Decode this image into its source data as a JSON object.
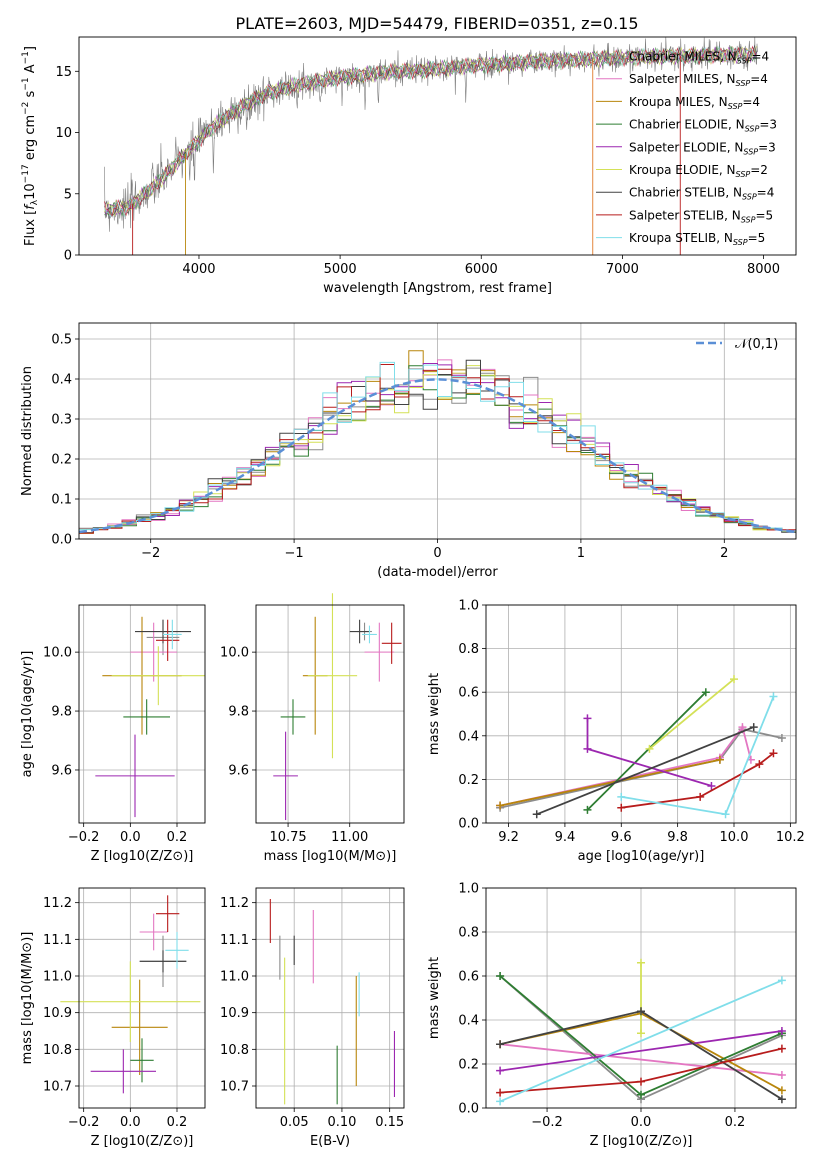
{
  "figure": {
    "title": "PLATE=2603, MJD=54479, FIBERID=0351, z=0.15"
  },
  "models": [
    {
      "name": "Chabrier MILES",
      "nssp": "4",
      "color": "#8c8c8c"
    },
    {
      "name": "Salpeter MILES",
      "nssp": "4",
      "color": "#e377c2"
    },
    {
      "name": "Kroupa MILES",
      "nssp": "4",
      "color": "#b8860b"
    },
    {
      "name": "Chabrier ELODIE",
      "nssp": "3",
      "color": "#2e7d32"
    },
    {
      "name": "Salpeter ELODIE",
      "nssp": "3",
      "color": "#9c27b0"
    },
    {
      "name": "Kroupa ELODIE",
      "nssp": "2",
      "color": "#d4e157"
    },
    {
      "name": "Chabrier STELIB",
      "nssp": "4",
      "color": "#424242"
    },
    {
      "name": "Salpeter STELIB",
      "nssp": "5",
      "color": "#b71c1c"
    },
    {
      "name": "Kroupa STELIB",
      "nssp": "5",
      "color": "#80deea"
    }
  ],
  "chart_data": [
    {
      "id": "spectrum",
      "type": "line",
      "xlabel": "wavelength [Angstrom, rest frame]",
      "ylabel": "Flux [f_λ 10^-17 erg cm^-2 s^-1 A^-1]",
      "xlim": [
        3150,
        8230
      ],
      "ylim": [
        0,
        17.8
      ],
      "xticks": [
        4000,
        5000,
        6000,
        7000,
        8000
      ],
      "yticks": [
        0,
        5,
        10,
        15
      ],
      "grid": false,
      "legend": "top-right",
      "continuum": {
        "x": [
          3330,
          3500,
          3700,
          3900,
          4100,
          4300,
          4500,
          4700,
          5000,
          5300,
          5600,
          6000,
          6400,
          6800,
          7200,
          7600,
          7960
        ],
        "y": [
          3.7,
          3.9,
          5.8,
          8.2,
          10.5,
          12.1,
          13.3,
          13.9,
          14.5,
          14.9,
          15.1,
          15.5,
          15.8,
          16.0,
          16.2,
          16.3,
          16.4
        ]
      }
    },
    {
      "id": "residuals",
      "type": "line",
      "xlabel": "(data-model)/error",
      "ylabel": "Normed distribution",
      "xlim": [
        -2.5,
        2.5
      ],
      "ylim": [
        0,
        0.54
      ],
      "xticks": [
        -2,
        -1,
        0,
        1,
        2
      ],
      "yticks": [
        0.0,
        0.1,
        0.2,
        0.3,
        0.4,
        0.5
      ],
      "grid": true,
      "legend": "top-right",
      "reference": {
        "name": "𝒩(0,1)",
        "mean": 0,
        "sigma": 1,
        "color": "#5b8fd6"
      },
      "bin_width": 0.1
    },
    {
      "id": "age_vs_Z",
      "type": "scatter",
      "xlabel": "Z [log10(Z/Z⊙)]",
      "ylabel": "age [log10(age/yr)]",
      "xlim": [
        -0.22,
        0.32
      ],
      "ylim": [
        9.42,
        10.16
      ],
      "xticks": [
        -0.2,
        0.0,
        0.2
      ],
      "yticks": [
        9.6,
        9.8,
        10.0
      ],
      "grid": true,
      "points": [
        {
          "model": 0,
          "x": 0.14,
          "y": 10.05,
          "xerr": 0.07,
          "yerr": 0.06
        },
        {
          "model": 1,
          "x": 0.1,
          "y": 10.0,
          "xerr": 0.1,
          "yerr": 0.1
        },
        {
          "model": 2,
          "x": 0.05,
          "y": 9.92,
          "xerr": 0.17,
          "yerr": 0.2
        },
        {
          "model": 3,
          "x": 0.07,
          "y": 9.78,
          "xerr": 0.1,
          "yerr": 0.06
        },
        {
          "model": 4,
          "x": 0.02,
          "y": 9.58,
          "xerr": 0.17,
          "yerr": 0.14
        },
        {
          "model": 5,
          "x": 0.12,
          "y": 9.92,
          "xerr": 0.2,
          "yerr": 0.1
        },
        {
          "model": 6,
          "x": 0.14,
          "y": 10.07,
          "xerr": 0.12,
          "yerr": 0.04
        },
        {
          "model": 7,
          "x": 0.16,
          "y": 10.04,
          "xerr": 0.05,
          "yerr": 0.07
        },
        {
          "model": 8,
          "x": 0.18,
          "y": 10.06,
          "xerr": 0.04,
          "yerr": 0.05
        }
      ]
    },
    {
      "id": "age_vs_mass",
      "type": "scatter",
      "xlabel": "mass [log10(M/M⊙)]",
      "ylabel": "",
      "xlim": [
        10.62,
        11.22
      ],
      "ylim": [
        9.42,
        10.16
      ],
      "xticks": [
        10.75,
        11.0
      ],
      "yticks": [
        9.6,
        9.8,
        10.0
      ],
      "grid": true,
      "points": [
        {
          "model": 0,
          "x": 11.06,
          "y": 10.07,
          "xerr": 0.03,
          "yerr": 0.03
        },
        {
          "model": 1,
          "x": 11.12,
          "y": 10.0,
          "xerr": 0.06,
          "yerr": 0.1
        },
        {
          "model": 2,
          "x": 10.86,
          "y": 9.92,
          "xerr": 0.05,
          "yerr": 0.2
        },
        {
          "model": 3,
          "x": 10.77,
          "y": 9.78,
          "xerr": 0.05,
          "yerr": 0.06
        },
        {
          "model": 4,
          "x": 10.74,
          "y": 9.58,
          "xerr": 0.05,
          "yerr": 0.15
        },
        {
          "model": 5,
          "x": 10.93,
          "y": 9.92,
          "xerr": 0.1,
          "yerr": 0.28
        },
        {
          "model": 6,
          "x": 11.04,
          "y": 10.07,
          "xerr": 0.04,
          "yerr": 0.04
        },
        {
          "model": 7,
          "x": 11.17,
          "y": 10.03,
          "xerr": 0.04,
          "yerr": 0.07
        },
        {
          "model": 8,
          "x": 11.08,
          "y": 10.06,
          "xerr": 0.03,
          "yerr": 0.03
        }
      ]
    },
    {
      "id": "weight_vs_age",
      "type": "line",
      "xlabel": "age [log10(age/yr)]",
      "ylabel": "mass weight",
      "xlim": [
        9.12,
        10.22
      ],
      "ylim": [
        0,
        1.0
      ],
      "xticks": [
        9.2,
        9.4,
        9.6,
        9.8,
        10.0,
        10.2
      ],
      "yticks": [
        0.0,
        0.2,
        0.4,
        0.6,
        0.8,
        1.0
      ],
      "grid": true,
      "series": [
        {
          "model": 0,
          "x": [
            9.17,
            9.95,
            10.03,
            10.17
          ],
          "y": [
            0.07,
            0.29,
            0.43,
            0.39
          ]
        },
        {
          "model": 1,
          "x": [
            9.17,
            9.95,
            10.03,
            10.06
          ],
          "y": [
            0.08,
            0.3,
            0.44,
            0.29
          ]
        },
        {
          "model": 2,
          "x": [
            9.17,
            9.95
          ],
          "y": [
            0.08,
            0.29
          ]
        },
        {
          "model": 3,
          "x": [
            9.48,
            9.9
          ],
          "y": [
            0.06,
            0.6
          ]
        },
        {
          "model": 4,
          "x": [
            9.48,
            9.48,
            9.92
          ],
          "y": [
            0.48,
            0.34,
            0.17
          ]
        },
        {
          "model": 5,
          "x": [
            9.7,
            10.0
          ],
          "y": [
            0.34,
            0.66
          ]
        },
        {
          "model": 6,
          "x": [
            9.3,
            10.07
          ],
          "y": [
            0.04,
            0.44
          ]
        },
        {
          "model": 7,
          "x": [
            9.6,
            9.88,
            10.09,
            10.14
          ],
          "y": [
            0.07,
            0.12,
            0.27,
            0.32
          ]
        },
        {
          "model": 8,
          "x": [
            9.6,
            9.97,
            10.14
          ],
          "y": [
            0.12,
            0.04,
            0.58
          ]
        }
      ]
    },
    {
      "id": "mass_vs_Z",
      "type": "scatter",
      "xlabel": "Z [log10(Z/Z⊙)]",
      "ylabel": "mass [log10(M/M⊙)]",
      "xlim": [
        -0.22,
        0.32
      ],
      "ylim": [
        10.64,
        11.24
      ],
      "xticks": [
        -0.2,
        0.0,
        0.2
      ],
      "yticks": [
        10.7,
        10.8,
        10.9,
        11.0,
        11.1,
        11.2
      ],
      "grid": true,
      "points": [
        {
          "model": 0,
          "x": 0.14,
          "y": 11.04,
          "xerr": 0.1,
          "yerr": 0.07
        },
        {
          "model": 1,
          "x": 0.1,
          "y": 11.12,
          "xerr": 0.06,
          "yerr": 0.05
        },
        {
          "model": 2,
          "x": 0.04,
          "y": 10.86,
          "xerr": 0.12,
          "yerr": 0.13
        },
        {
          "model": 3,
          "x": 0.05,
          "y": 10.77,
          "xerr": 0.05,
          "yerr": 0.06
        },
        {
          "model": 4,
          "x": -0.03,
          "y": 10.74,
          "xerr": 0.14,
          "yerr": 0.06
        },
        {
          "model": 5,
          "x": 0.0,
          "y": 10.93,
          "xerr": 0.3,
          "yerr": 0.11
        },
        {
          "model": 6,
          "x": 0.14,
          "y": 11.04,
          "xerr": 0.1,
          "yerr": 0.03
        },
        {
          "model": 7,
          "x": 0.16,
          "y": 11.17,
          "xerr": 0.05,
          "yerr": 0.05
        },
        {
          "model": 8,
          "x": 0.2,
          "y": 11.07,
          "xerr": 0.05,
          "yerr": 0.05
        }
      ]
    },
    {
      "id": "mass_vs_ebv",
      "type": "scatter",
      "xlabel": "E(B-V)",
      "ylabel": "",
      "xlim": [
        0.01,
        0.165
      ],
      "ylim": [
        10.64,
        11.24
      ],
      "xticks": [
        0.05,
        0.1,
        0.15
      ],
      "yticks": [
        10.7,
        10.8,
        10.9,
        11.0,
        11.1,
        11.2
      ],
      "grid": true,
      "points": [
        {
          "model": 0,
          "x": 0.035,
          "y": 11.05,
          "xerr": 0,
          "yerr": 0.06
        },
        {
          "model": 1,
          "x": 0.07,
          "y": 11.08,
          "xerr": 0,
          "yerr": 0.1
        },
        {
          "model": 2,
          "x": 0.115,
          "y": 10.85,
          "xerr": 0,
          "yerr": 0.15
        },
        {
          "model": 3,
          "x": 0.095,
          "y": 10.73,
          "xerr": 0,
          "yerr": 0.08
        },
        {
          "model": 4,
          "x": 0.155,
          "y": 10.76,
          "xerr": 0,
          "yerr": 0.09
        },
        {
          "model": 5,
          "x": 0.04,
          "y": 10.85,
          "xerr": 0,
          "yerr": 0.2
        },
        {
          "model": 6,
          "x": 0.05,
          "y": 11.07,
          "xerr": 0,
          "yerr": 0.04
        },
        {
          "model": 7,
          "x": 0.025,
          "y": 11.15,
          "xerr": 0,
          "yerr": 0.06
        },
        {
          "model": 8,
          "x": 0.118,
          "y": 10.95,
          "xerr": 0,
          "yerr": 0.06
        }
      ]
    },
    {
      "id": "weight_vs_Z",
      "type": "line",
      "xlabel": "Z [log10(Z/Z⊙)]",
      "ylabel": "mass weight",
      "xlim": [
        -0.33,
        0.33
      ],
      "ylim": [
        0,
        1.0
      ],
      "xticks": [
        -0.2,
        0.0,
        0.2
      ],
      "yticks": [
        0.0,
        0.2,
        0.4,
        0.6,
        0.8,
        1.0
      ],
      "grid": true,
      "series": [
        {
          "model": 0,
          "x": [
            -0.3,
            0.0,
            0.3
          ],
          "y": [
            0.6,
            0.04,
            0.33
          ]
        },
        {
          "model": 1,
          "x": [
            -0.3,
            0.3
          ],
          "y": [
            0.29,
            0.15
          ]
        },
        {
          "model": 2,
          "x": [
            -0.3,
            0.0,
            0.3
          ],
          "y": [
            0.29,
            0.43,
            0.08
          ]
        },
        {
          "model": 3,
          "x": [
            -0.3,
            0.0,
            0.3
          ],
          "y": [
            0.6,
            0.06,
            0.34
          ]
        },
        {
          "model": 4,
          "x": [
            -0.3,
            0.3
          ],
          "y": [
            0.17,
            0.35
          ]
        },
        {
          "model": 5,
          "x": [
            0.0,
            0.0
          ],
          "y": [
            0.34,
            0.66
          ]
        },
        {
          "model": 6,
          "x": [
            -0.3,
            0.0,
            0.3
          ],
          "y": [
            0.29,
            0.44,
            0.04
          ]
        },
        {
          "model": 7,
          "x": [
            -0.3,
            0.0,
            0.3
          ],
          "y": [
            0.07,
            0.12,
            0.27
          ]
        },
        {
          "model": 8,
          "x": [
            -0.3,
            0.3
          ],
          "y": [
            0.03,
            0.58
          ]
        }
      ]
    }
  ]
}
